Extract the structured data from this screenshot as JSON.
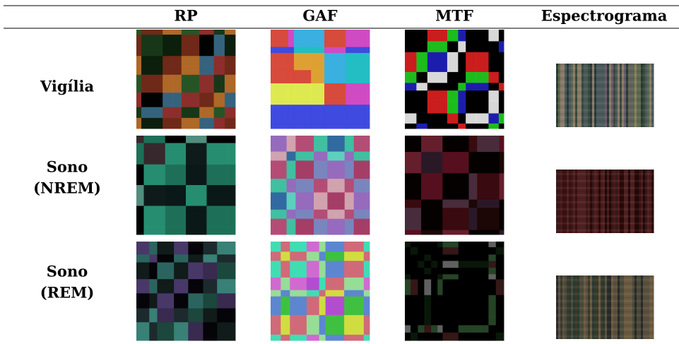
{
  "table": {
    "columns": [
      "RP",
      "GAF",
      "MTF",
      "Espectrograma"
    ],
    "rows": [
      [
        "Vigília"
      ],
      [
        "Sono",
        "(NREM)"
      ],
      [
        "Sono",
        "(REM)"
      ]
    ]
  }
}
